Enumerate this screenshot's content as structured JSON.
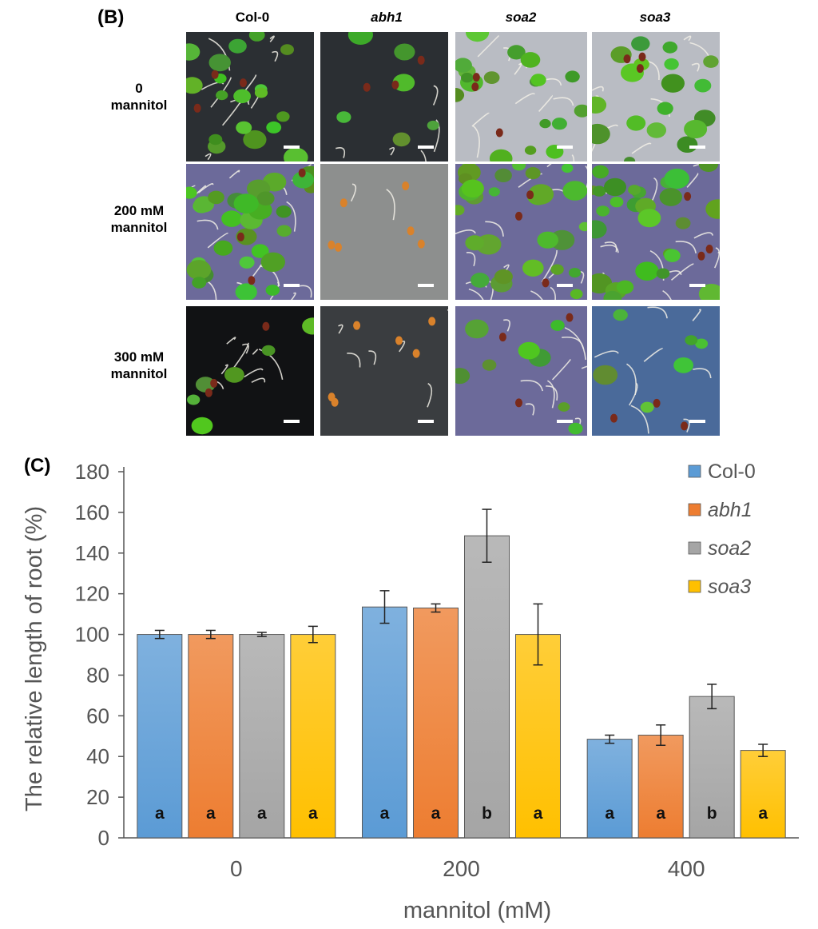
{
  "panel_b": {
    "label": "(B)",
    "columns": [
      "Col-0",
      "abh1",
      "soa2",
      "soa3"
    ],
    "rows": [
      {
        "line1": "0",
        "line2": "mannitol"
      },
      {
        "line1": "200 mM",
        "line2": "mannitol"
      },
      {
        "line1": "300 mM",
        "line2": "mannitol"
      }
    ],
    "colors": {
      "dark_plate": "#2b2f33",
      "grey_plate": "#8d8f8e",
      "purple_plate": "#6c6a9a",
      "blue_plate": "#4a6a9a",
      "leaf": "#5bb033",
      "seed": "#d9822b",
      "root": "#f1efe6"
    }
  },
  "chart_data": {
    "type": "bar",
    "label": "(C)",
    "categories": [
      "0",
      "200",
      "400"
    ],
    "xlabel": "mannitol (mM)",
    "ylabel": "The relative length of root (%)",
    "ylim": [
      0,
      180
    ],
    "yticks": [
      0,
      20,
      40,
      60,
      80,
      100,
      120,
      140,
      160,
      180
    ],
    "grid": false,
    "legend_position": "top-right",
    "series": [
      {
        "name": "Col-0",
        "italic": false,
        "color": "#5b9bd5",
        "values": [
          100,
          113.5,
          48.5
        ],
        "errors": [
          2,
          8,
          2
        ],
        "letters": [
          "a",
          "a",
          "a"
        ]
      },
      {
        "name": "abh1",
        "italic": true,
        "color": "#ed7d31",
        "values": [
          100,
          113,
          50.5
        ],
        "errors": [
          2,
          2,
          5
        ],
        "letters": [
          "a",
          "a",
          "a"
        ]
      },
      {
        "name": "soa2",
        "italic": true,
        "color": "#a5a5a5",
        "values": [
          100,
          148.5,
          69.5
        ],
        "errors": [
          1,
          13,
          6
        ],
        "letters": [
          "a",
          "b",
          "b"
        ]
      },
      {
        "name": "soa3",
        "italic": true,
        "color": "#ffc000",
        "values": [
          100,
          100,
          43
        ],
        "errors": [
          4,
          15,
          3
        ],
        "letters": [
          "a",
          "a",
          "a"
        ]
      }
    ]
  }
}
